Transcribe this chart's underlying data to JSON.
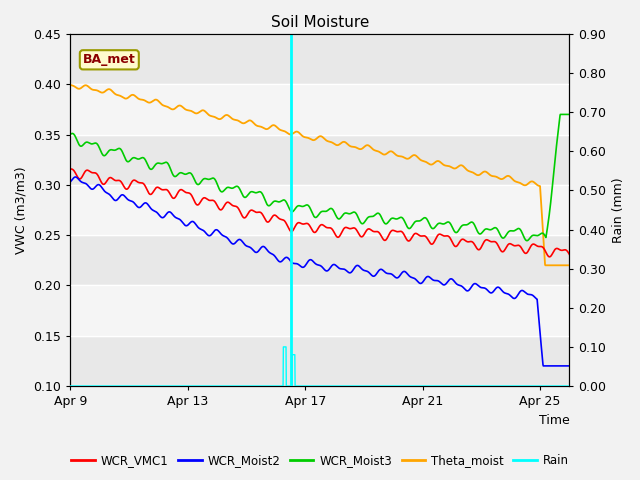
{
  "title": "Soil Moisture",
  "ylabel_left": "VWC (m3/m3)",
  "ylabel_right": "Rain (mm)",
  "xlabel": "Time",
  "ylim_left": [
    0.1,
    0.45
  ],
  "ylim_right": [
    0.0,
    0.9
  ],
  "xlim_days": [
    0,
    17
  ],
  "xtick_positions": [
    0,
    4,
    8,
    12,
    16
  ],
  "xtick_labels": [
    "Apr 9",
    "Apr 13",
    "Apr 17",
    "Apr 21",
    "Apr 25"
  ],
  "ytick_left": [
    0.1,
    0.15,
    0.2,
    0.25,
    0.3,
    0.35,
    0.4,
    0.45
  ],
  "ytick_right": [
    0.0,
    0.1,
    0.2,
    0.3,
    0.4,
    0.5,
    0.6,
    0.7,
    0.8,
    0.9
  ],
  "vline_x": 7.5,
  "bg_color": "#f2f2f2",
  "plot_bg": "#e8e8e8",
  "band_color_light": "#f5f5f5",
  "ba_met_label": "BA_met",
  "ba_met_text_color": "#8B0000",
  "ba_met_bg": "#FFFACD",
  "ba_met_border": "#999900",
  "legend_items": [
    "WCR_VMC1",
    "WCR_Moist2",
    "WCR_Moist3",
    "Theta_moist",
    "Rain"
  ],
  "legend_colors": [
    "#FF0000",
    "#0000FF",
    "#00CC00",
    "#FFA500",
    "#00FFFF"
  ],
  "colors": {
    "wcr_vmc1": "#FF0000",
    "wcr_moist2": "#0000FF",
    "wcr_moist3": "#00CC00",
    "theta_moist": "#FFA500",
    "rain": "#00FFFF"
  },
  "n_points": 1700,
  "total_days": 17.0,
  "seed": 42
}
